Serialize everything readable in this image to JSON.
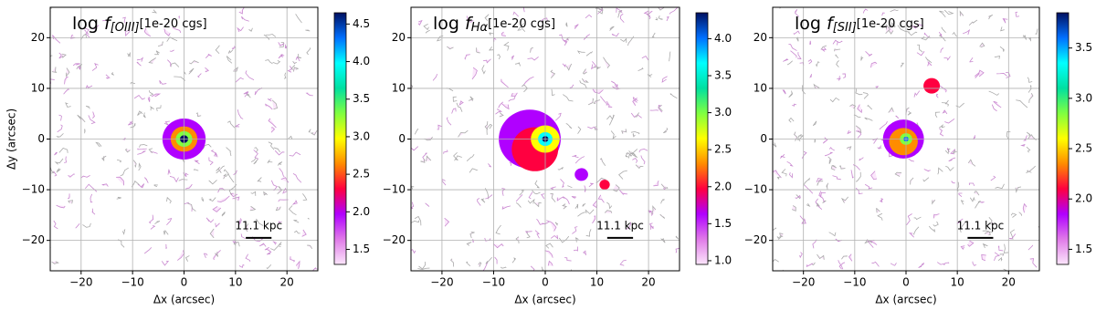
{
  "chart_data": [
    {
      "type": "image",
      "title": {
        "prefix": "log ",
        "symbol": "f",
        "subscript": "[OIII]",
        "unit": "[1e-20 cgs]"
      },
      "xlabel": "Δx (arcsec)",
      "ylabel": "Δy (arcsec)",
      "xlim": [
        -26,
        26
      ],
      "ylim": [
        -26,
        26
      ],
      "xticks": [
        {
          "value": -20,
          "label": "−20"
        },
        {
          "value": -10,
          "label": "−10"
        },
        0,
        10,
        20
      ],
      "yticks": [
        {
          "value": -20,
          "label": "−20"
        },
        {
          "value": -10,
          "label": "−10"
        },
        0,
        10,
        20
      ],
      "grid": true,
      "colorbar": {
        "lim": [
          1.3,
          4.65
        ],
        "ticks": [
          1.5,
          {
            "value": 2,
            "label": "2.0"
          },
          2.5,
          {
            "value": 3,
            "label": "3.0"
          },
          3.5,
          {
            "value": 4,
            "label": "4.0"
          },
          4.5
        ],
        "colors": [
          "#fbe6fb",
          "#e07ae8",
          "#b000ff",
          "#ff0040",
          "#ff8c00",
          "#ffff00",
          "#80ff40",
          "#00e0a0",
          "#00ffff",
          "#0070ff",
          "#001060"
        ]
      },
      "scalebar_label": "11.1 kpc"
    },
    {
      "type": "image",
      "title": {
        "prefix": "log ",
        "symbol": "f",
        "subscript": "Hα",
        "unit": "[1e-20 cgs]"
      },
      "xlabel": "Δx (arcsec)",
      "xlim": [
        -26,
        26
      ],
      "ylim": [
        -26,
        26
      ],
      "xticks": [
        {
          "value": -20,
          "label": "−20"
        },
        {
          "value": -10,
          "label": "−10"
        },
        0,
        10,
        20
      ],
      "yticks": [
        {
          "value": -20,
          "label": "−20"
        },
        {
          "value": -10,
          "label": "−10"
        },
        0,
        10,
        20
      ],
      "grid": true,
      "colorbar": {
        "lim": [
          0.95,
          4.35
        ],
        "ticks": [
          {
            "value": 1,
            "label": "1.0"
          },
          1.5,
          {
            "value": 2,
            "label": "2.0"
          },
          2.5,
          {
            "value": 3,
            "label": "3.0"
          },
          3.5,
          {
            "value": 4,
            "label": "4.0"
          }
        ],
        "colors": [
          "#fbe6fb",
          "#e07ae8",
          "#b000ff",
          "#ff0040",
          "#ff8c00",
          "#ffff00",
          "#80ff40",
          "#00e0a0",
          "#00ffff",
          "#0070ff",
          "#001060"
        ]
      },
      "scalebar_label": "11.1 kpc"
    },
    {
      "type": "image",
      "title": {
        "prefix": "log ",
        "symbol": "f",
        "subscript": "[SII]",
        "unit": "[1e-20 cgs]"
      },
      "xlabel": "Δx (arcsec)",
      "xlim": [
        -26,
        26
      ],
      "ylim": [
        -26,
        26
      ],
      "xticks": [
        {
          "value": -20,
          "label": "−20"
        },
        {
          "value": -10,
          "label": "−10"
        },
        0,
        10,
        20
      ],
      "yticks": [
        {
          "value": -20,
          "label": "−20"
        },
        {
          "value": -10,
          "label": "−10"
        },
        0,
        10,
        20
      ],
      "grid": true,
      "colorbar": {
        "lim": [
          1.35,
          3.85
        ],
        "ticks": [
          1.5,
          {
            "value": 2,
            "label": "2.0"
          },
          2.5,
          {
            "value": 3,
            "label": "3.0"
          },
          3.5
        ],
        "colors": [
          "#fbe6fb",
          "#e07ae8",
          "#b000ff",
          "#ff0040",
          "#ff8c00",
          "#ffff00",
          "#80ff40",
          "#00e0a0",
          "#00ffff",
          "#0070ff",
          "#001060"
        ]
      },
      "scalebar_label": "11.1 kpc"
    }
  ]
}
